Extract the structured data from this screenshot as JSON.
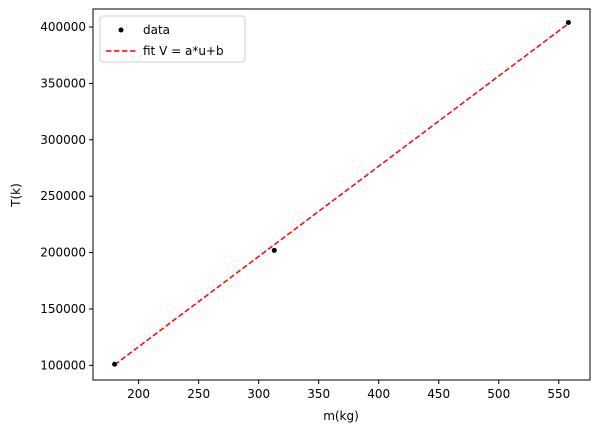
{
  "chart_data": {
    "type": "scatter",
    "title": "",
    "xlabel": "m(kg)",
    "ylabel": "T(k)",
    "xlim": [
      162,
      576
    ],
    "ylim": [
      87000,
      416000
    ],
    "xticks": [
      200,
      250,
      300,
      350,
      400,
      450,
      500,
      550
    ],
    "yticks": [
      100000,
      150000,
      200000,
      250000,
      300000,
      350000,
      400000
    ],
    "grid": false,
    "legend_position": "top-left",
    "series": [
      {
        "name": "data",
        "kind": "markers",
        "color": "#000000",
        "x": [
          180,
          313,
          558
        ],
        "y": [
          101000,
          202000,
          404000
        ]
      },
      {
        "name": "fit V = a*u+b",
        "kind": "dashed-line",
        "color": "#ff0000",
        "x": [
          180,
          558
        ],
        "y": [
          100500,
          403000
        ]
      }
    ]
  }
}
